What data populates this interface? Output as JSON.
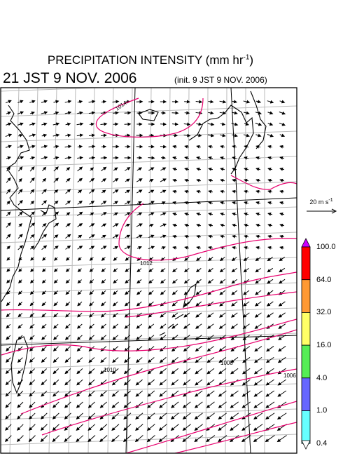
{
  "title": {
    "main": "PRECIPITATION INTENSITY (mm hr",
    "exp": "-1",
    "close": ")"
  },
  "valid_time": "21 JST 9 NOV. 2006",
  "init_time": "(init. 9 JST 9 NOV. 2006)",
  "wind_reference": {
    "label": "20 m s",
    "exp": "-1"
  },
  "isobar_labels": [
    "1014",
    "1012",
    "1010",
    "1008",
    "1006"
  ],
  "colorbar": {
    "labels": [
      "100.0",
      "64.0",
      "32.0",
      "16.0",
      "4.0",
      "1.0",
      "0.4"
    ],
    "colors": [
      "#cc00ff",
      "#ff0000",
      "#ff9933",
      "#ffff66",
      "#55ee55",
      "#6666ff",
      "#66ffff",
      "#ffffff"
    ]
  },
  "colors": {
    "isobar": "#e8006e",
    "coast": "#000000",
    "grid": "#bbbbbb"
  }
}
